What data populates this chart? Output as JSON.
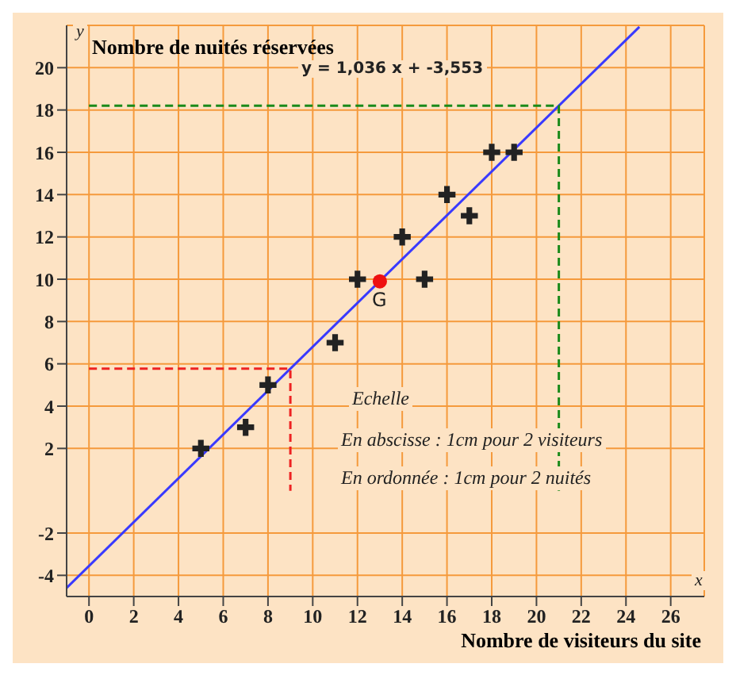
{
  "chart_data": {
    "type": "scatter",
    "xlabel": "Nombre de visiteurs du site",
    "ylabel": "Nombre de nuités réservées",
    "xlim": [
      -1,
      27.5
    ],
    "ylim": [
      -5,
      22
    ],
    "xticks": [
      0,
      2,
      4,
      6,
      8,
      10,
      12,
      14,
      16,
      18,
      20,
      22,
      24,
      26
    ],
    "yticks": [
      -4,
      -2,
      2,
      4,
      6,
      8,
      10,
      12,
      14,
      16,
      18,
      20
    ],
    "grid": true,
    "series": [
      {
        "type": "line",
        "color": "#3a3aff",
        "x": [
          -1,
          24.6
        ],
        "values": [
          -4.59,
          21.93
        ],
        "marker": "none",
        "line_style": "solid"
      },
      {
        "type": "line",
        "color": "#ee2222",
        "x": [
          0,
          9,
          9
        ],
        "values": [
          5.77,
          5.77,
          0
        ],
        "marker": "none",
        "line_style": "dashed"
      },
      {
        "type": "line",
        "color": "#1a8a1a",
        "x": [
          0,
          21,
          21
        ],
        "values": [
          18.2,
          18.2,
          0
        ],
        "marker": "none",
        "line_style": "dashed"
      },
      {
        "color": "#222222",
        "marker": "cross",
        "x": [
          5,
          7,
          8,
          11,
          12,
          14,
          15,
          16,
          17,
          18,
          19
        ],
        "values": [
          2,
          3,
          5,
          7,
          10,
          12,
          10,
          14,
          13,
          16,
          16
        ]
      },
      {
        "color": "#ee1111",
        "marker": "circle",
        "x": [
          13
        ],
        "values": [
          9.9
        ]
      }
    ],
    "annotations": [
      "y = 1,036 x + -3,553",
      "Echelle",
      "En abscisse : 1cm pour 2 visiteurs",
      "En ordonnée : 1cm pour 2 nuités",
      "x",
      "y",
      {
        "text": "G",
        "x": 13,
        "y": 9.9
      }
    ]
  }
}
